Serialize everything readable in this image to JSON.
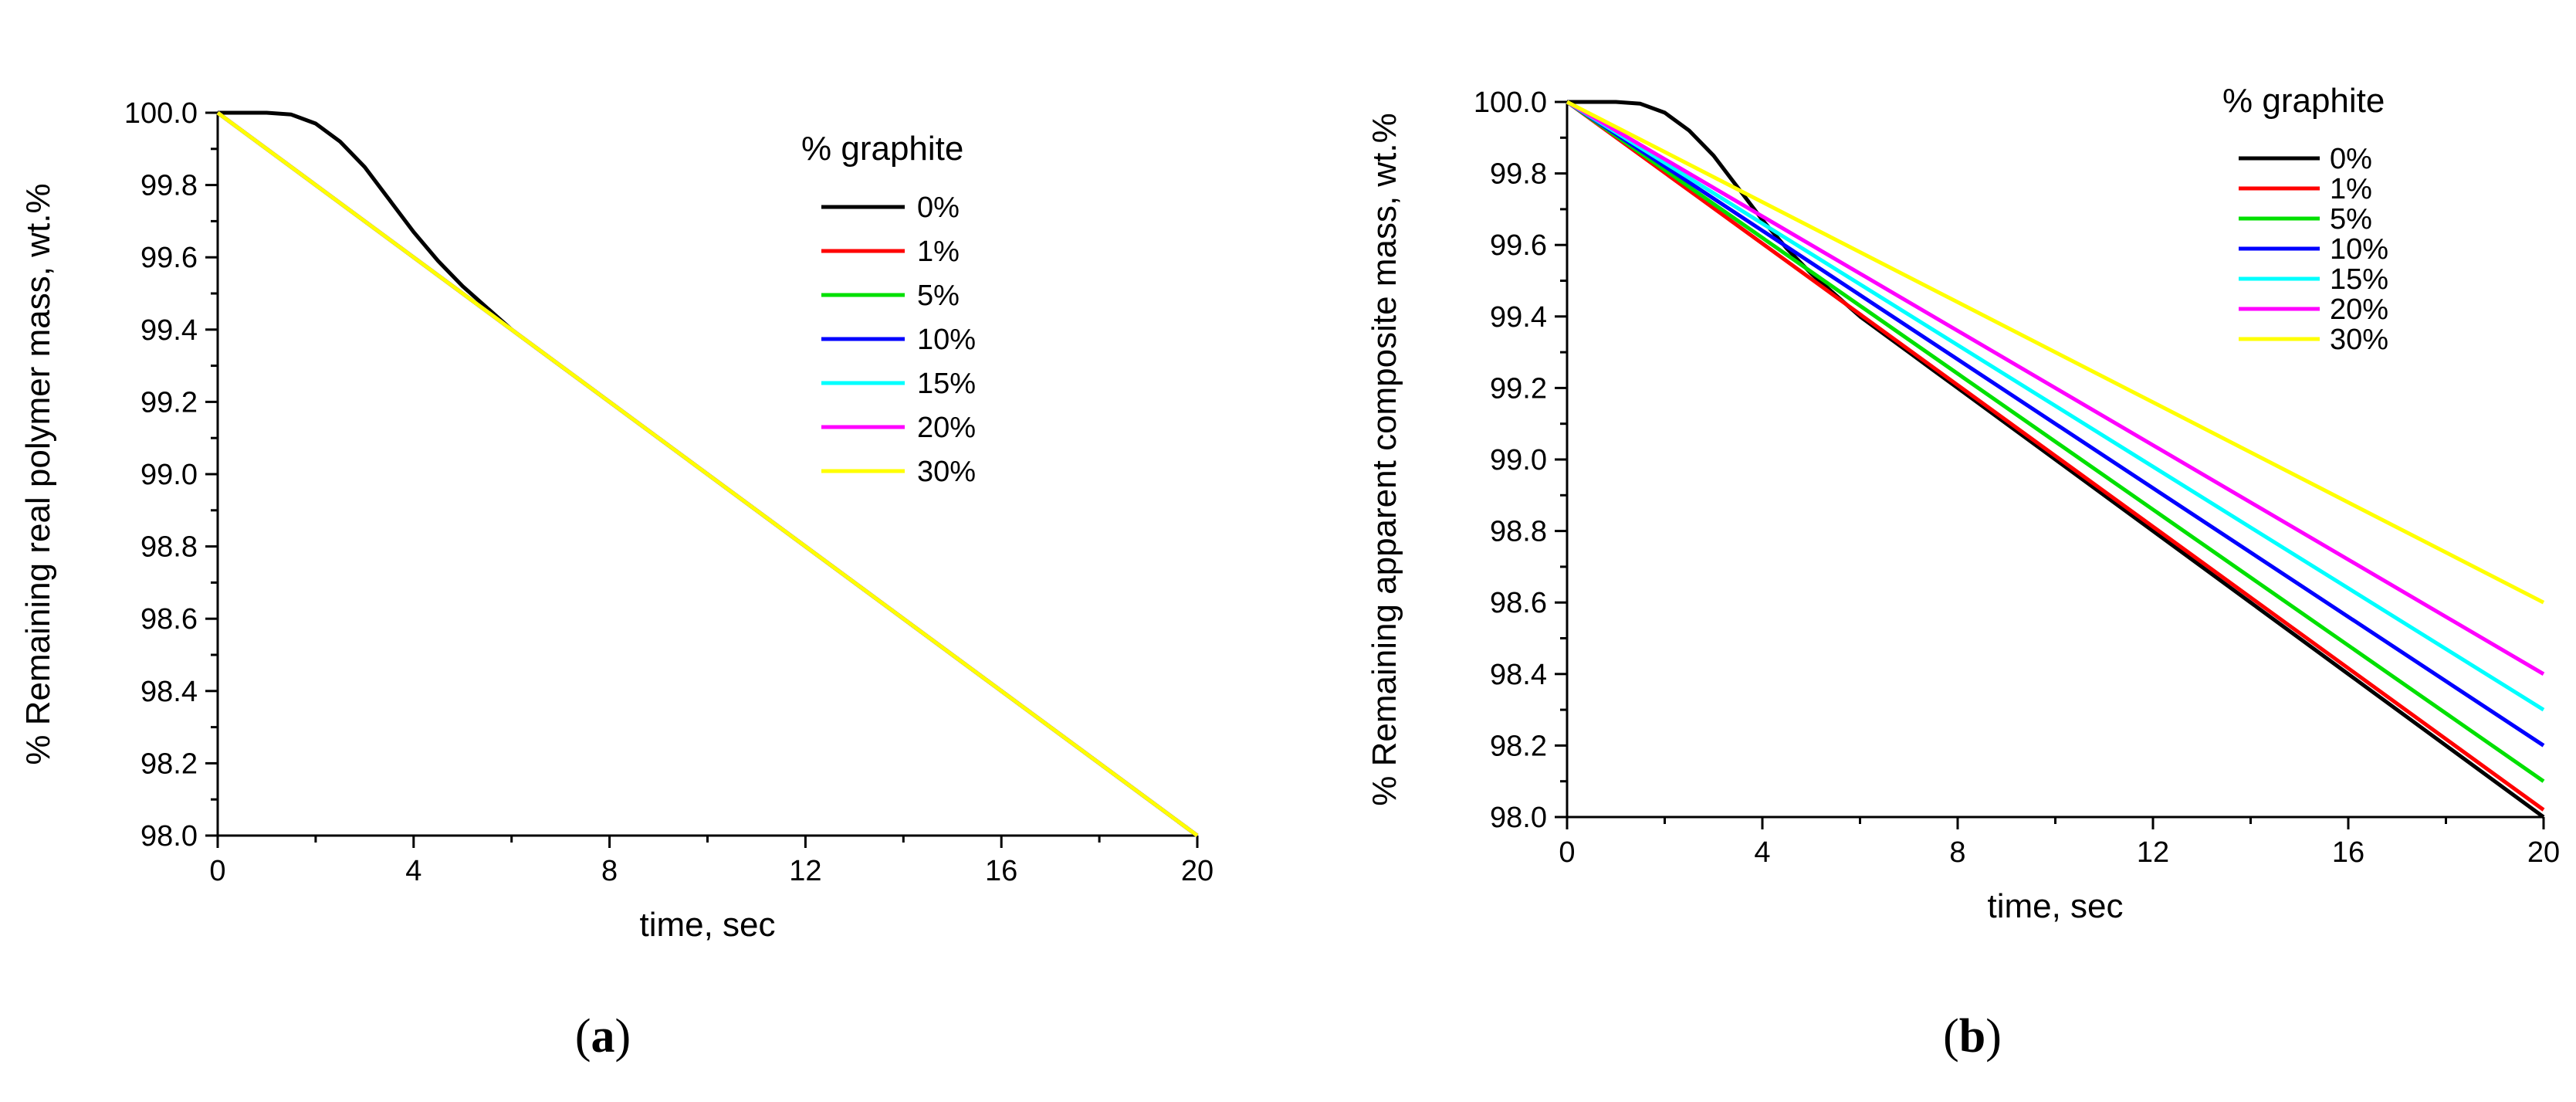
{
  "chart_data": [
    {
      "type": "line",
      "panel_label": {
        "open": "(",
        "letter": "a",
        "close": ")"
      },
      "xlabel": "time, sec",
      "ylabel": "% Remaining real polymer mass, wt.%",
      "xlim": [
        0,
        20
      ],
      "ylim": [
        98.0,
        100.0
      ],
      "x_ticks": [
        "0",
        "4",
        "8",
        "12",
        "16",
        "20"
      ],
      "y_ticks": [
        "98.0",
        "98.2",
        "98.4",
        "98.6",
        "98.8",
        "99.0",
        "99.2",
        "99.4",
        "99.6",
        "99.8",
        "100.0"
      ],
      "legend_title": "% graphite",
      "series": [
        {
          "name": "0%",
          "color": "#000000",
          "points": [
            [
              0,
              100.0
            ],
            [
              0.5,
              100.0
            ],
            [
              1.0,
              100.0
            ],
            [
              1.5,
              99.995
            ],
            [
              2.0,
              99.97
            ],
            [
              2.5,
              99.92
            ],
            [
              3.0,
              99.85
            ],
            [
              3.5,
              99.76
            ],
            [
              4.0,
              99.67
            ],
            [
              4.5,
              99.59
            ],
            [
              5.0,
              99.52
            ],
            [
              5.5,
              99.46
            ],
            [
              6.0,
              99.4
            ],
            [
              6.5,
              99.35
            ],
            [
              7.0,
              99.3
            ],
            [
              7.5,
              99.25
            ],
            [
              8.0,
              99.2
            ],
            [
              9.0,
              99.1
            ],
            [
              10.0,
              99.0
            ],
            [
              12.0,
              98.8
            ],
            [
              14.0,
              98.6
            ],
            [
              16.0,
              98.4
            ],
            [
              18.0,
              98.2
            ],
            [
              20.0,
              98.0
            ]
          ]
        },
        {
          "name": "1%",
          "color": "#ff0000",
          "points": [
            [
              0,
              100.0
            ],
            [
              20,
              98.0
            ]
          ]
        },
        {
          "name": "5%",
          "color": "#00e000",
          "points": [
            [
              0,
              100.0
            ],
            [
              20,
              98.0
            ]
          ]
        },
        {
          "name": "10%",
          "color": "#0000ff",
          "points": [
            [
              0,
              100.0
            ],
            [
              20,
              98.0
            ]
          ]
        },
        {
          "name": "15%",
          "color": "#00ffff",
          "points": [
            [
              0,
              100.0
            ],
            [
              20,
              98.0
            ]
          ]
        },
        {
          "name": "20%",
          "color": "#ff00ff",
          "points": [
            [
              0,
              100.0
            ],
            [
              20,
              98.0
            ]
          ]
        },
        {
          "name": "30%",
          "color": "#ffff00",
          "points": [
            [
              0,
              100.0
            ],
            [
              20,
              98.0
            ]
          ]
        }
      ]
    },
    {
      "type": "line",
      "panel_label": {
        "open": "(",
        "letter": "b",
        "close": ")"
      },
      "xlabel": "time, sec",
      "ylabel": "% Remaining apparent composite mass, wt.%",
      "xlim": [
        0,
        20
      ],
      "ylim": [
        98.0,
        100.0
      ],
      "x_ticks": [
        "0",
        "4",
        "8",
        "12",
        "16",
        "20"
      ],
      "y_ticks": [
        "98.0",
        "98.2",
        "98.4",
        "98.6",
        "98.8",
        "99.0",
        "99.2",
        "99.4",
        "99.6",
        "99.8",
        "100.0"
      ],
      "legend_title": "% graphite",
      "series": [
        {
          "name": "0%",
          "color": "#000000",
          "points": [
            [
              0,
              100.0
            ],
            [
              0.5,
              100.0
            ],
            [
              1.0,
              100.0
            ],
            [
              1.5,
              99.995
            ],
            [
              2.0,
              99.97
            ],
            [
              2.5,
              99.92
            ],
            [
              3.0,
              99.85
            ],
            [
              3.5,
              99.76
            ],
            [
              4.0,
              99.67
            ],
            [
              4.5,
              99.59
            ],
            [
              5.0,
              99.52
            ],
            [
              5.5,
              99.46
            ],
            [
              6.0,
              99.4
            ],
            [
              6.5,
              99.35
            ],
            [
              7.0,
              99.3
            ],
            [
              7.5,
              99.25
            ],
            [
              8.0,
              99.2
            ],
            [
              9.0,
              99.1
            ],
            [
              10.0,
              99.0
            ],
            [
              12.0,
              98.8
            ],
            [
              14.0,
              98.6
            ],
            [
              16.0,
              98.4
            ],
            [
              18.0,
              98.2
            ],
            [
              20.0,
              98.0
            ]
          ]
        },
        {
          "name": "1%",
          "color": "#ff0000",
          "points": [
            [
              0,
              100.0
            ],
            [
              20,
              98.02
            ]
          ]
        },
        {
          "name": "5%",
          "color": "#00e000",
          "points": [
            [
              0,
              100.0
            ],
            [
              20,
              98.1
            ]
          ]
        },
        {
          "name": "10%",
          "color": "#0000ff",
          "points": [
            [
              0,
              100.0
            ],
            [
              20,
              98.2
            ]
          ]
        },
        {
          "name": "15%",
          "color": "#00ffff",
          "points": [
            [
              0,
              100.0
            ],
            [
              20,
              98.3
            ]
          ]
        },
        {
          "name": "20%",
          "color": "#ff00ff",
          "points": [
            [
              0,
              100.0
            ],
            [
              20,
              98.4
            ]
          ]
        },
        {
          "name": "30%",
          "color": "#ffff00",
          "points": [
            [
              0,
              100.0
            ],
            [
              20,
              98.6
            ]
          ]
        }
      ]
    }
  ]
}
